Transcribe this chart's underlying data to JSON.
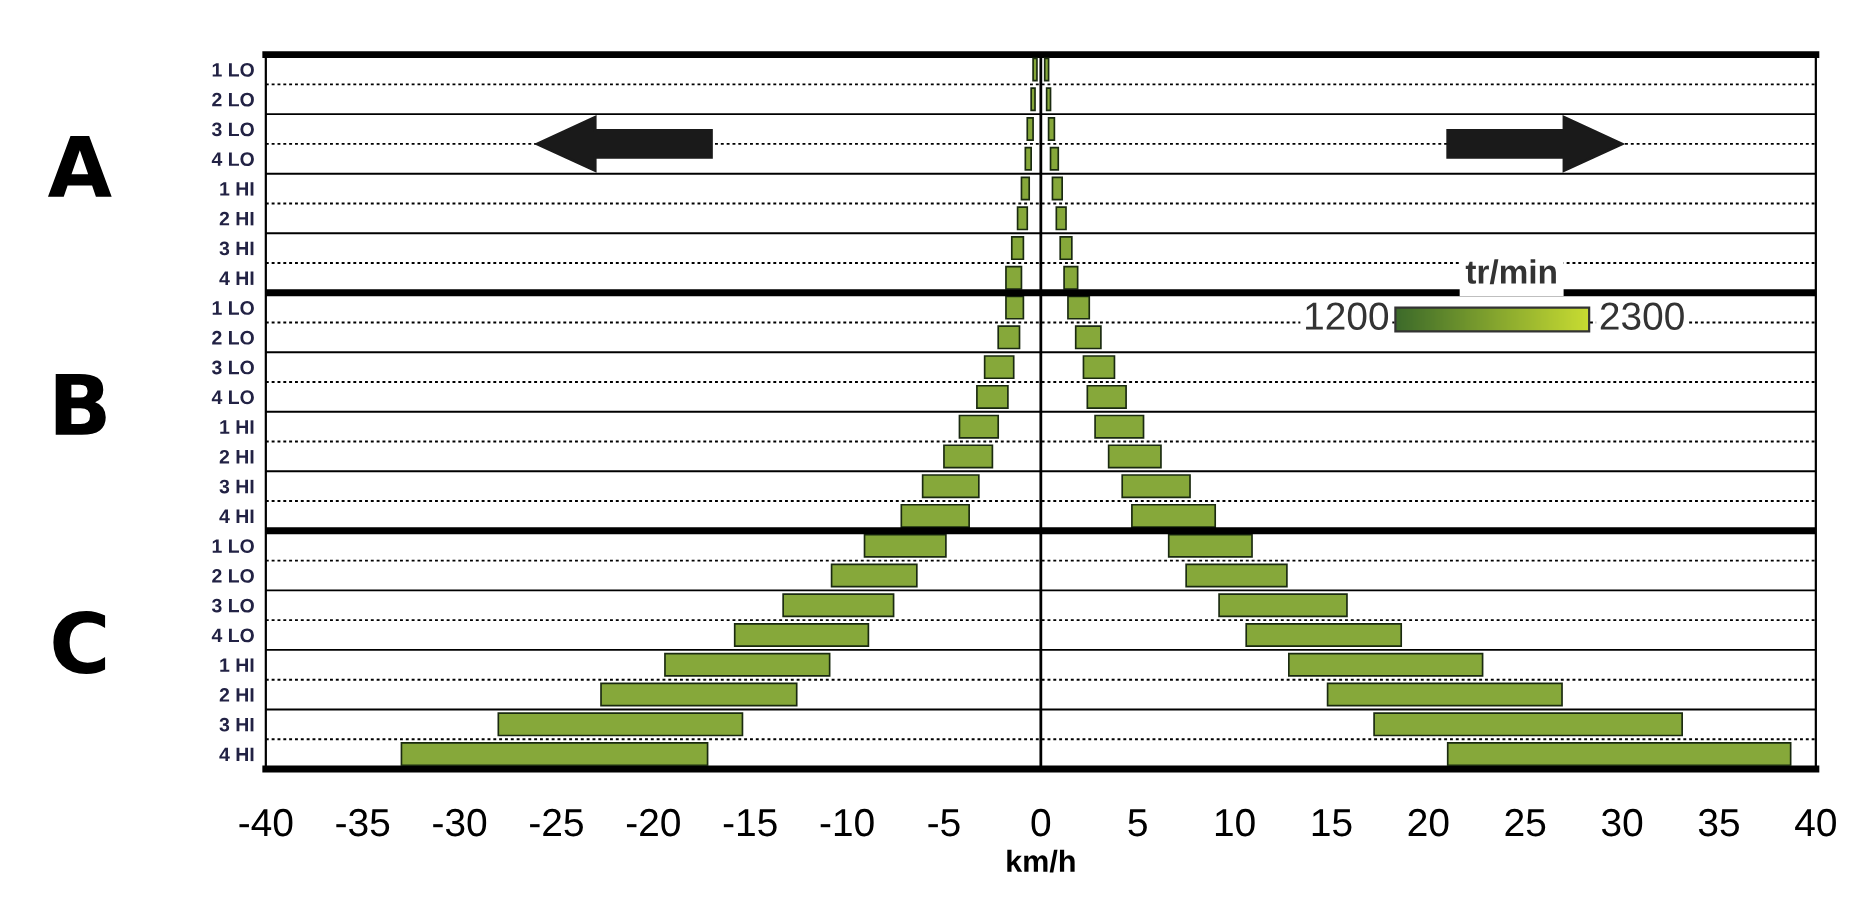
{
  "chart_data": {
    "type": "bar",
    "orientation": "horizontal",
    "xlabel": "km/h",
    "categories": [
      "1 LO",
      "2 LO",
      "3 LO",
      "4 LO",
      "1 HI",
      "2 HI",
      "3 HI",
      "4 HI",
      "1 LO",
      "2 LO",
      "3 LO",
      "4 LO",
      "1 HI",
      "2 HI",
      "3 HI",
      "4 HI",
      "1 LO",
      "2 LO",
      "3 LO",
      "4 LO",
      "1 HI",
      "2 HI",
      "3 HI",
      "4 HI"
    ],
    "series": [
      {
        "color": "#86a83a",
        "base": [
          0.2,
          0.3,
          0.4,
          0.5,
          0.6,
          0.8,
          1.0,
          1.2,
          1.4,
          1.8,
          2.2,
          2.4,
          2.8,
          3.5,
          4.2,
          4.7,
          6.6,
          7.5,
          9.2,
          10.6,
          12.8,
          14.8,
          17.2,
          21.0
        ],
        "values": [
          0.2,
          0.2,
          0.3,
          0.4,
          0.5,
          0.5,
          0.6,
          0.7,
          1.1,
          1.3,
          1.6,
          2.0,
          2.5,
          2.7,
          3.5,
          4.3,
          4.3,
          5.2,
          6.6,
          8.0,
          10.0,
          12.1,
          15.9,
          17.7
        ]
      },
      {
        "color": "#86a83a",
        "base": [
          -0.2,
          -0.3,
          -0.4,
          -0.5,
          -0.6,
          -0.7,
          -0.9,
          -1.0,
          -0.9,
          -1.1,
          -1.4,
          -1.7,
          -2.2,
          -2.5,
          -3.2,
          -3.7,
          -4.9,
          -6.4,
          -7.6,
          -8.9,
          -10.9,
          -12.6,
          -15.4,
          -17.2
        ],
        "values": [
          -0.2,
          -0.2,
          -0.3,
          -0.3,
          -0.4,
          -0.5,
          -0.6,
          -0.8,
          -0.9,
          -1.1,
          -1.5,
          -1.6,
          -2.0,
          -2.5,
          -2.9,
          -3.5,
          -4.2,
          -4.4,
          -5.7,
          -6.9,
          -8.5,
          -10.1,
          -12.6,
          -15.8
        ]
      }
    ],
    "xlim": [
      -40,
      40
    ],
    "xticks": [
      -40,
      -35,
      -30,
      -25,
      -20,
      -15,
      -10,
      -5,
      0,
      5,
      10,
      15,
      20,
      25,
      30,
      35,
      40
    ],
    "grid": "y",
    "ref_lines": [
      {
        "axis": "x",
        "value": 0,
        "color": "#000000"
      }
    ],
    "annotations": [
      "A",
      "B",
      "C",
      "tr/min",
      "1200",
      "2300"
    ]
  }
}
